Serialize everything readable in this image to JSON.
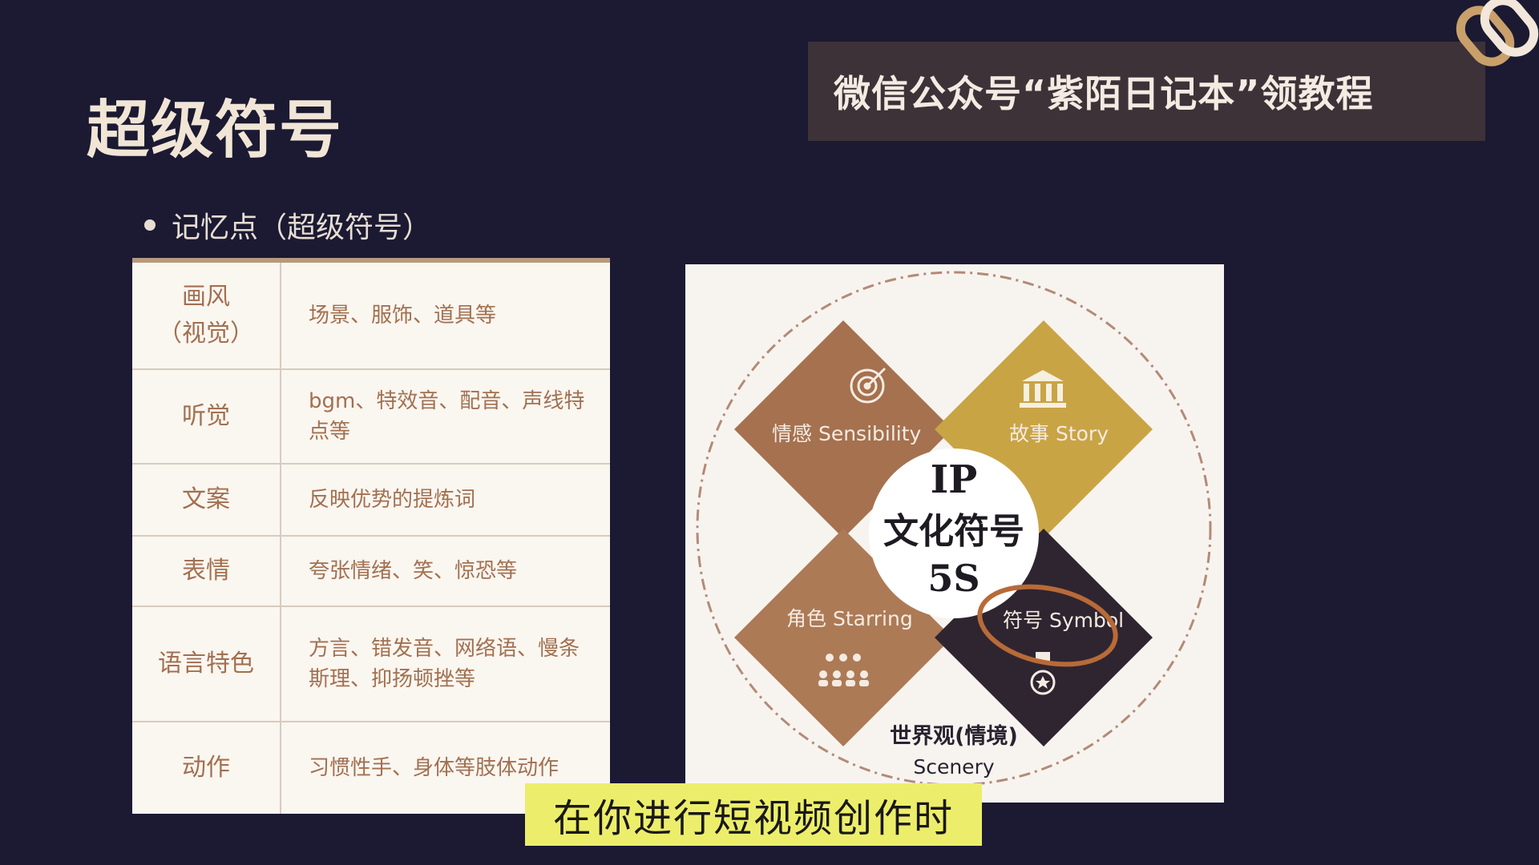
{
  "title": "超级符号",
  "banner": {
    "text": "微信公众号“紫陌日记本”领教程"
  },
  "subtitle": "记忆点（超级符号）",
  "table": {
    "rows": [
      {
        "key": "画风\n（视觉）",
        "value": "场景、服饰、道具等"
      },
      {
        "key": "听觉",
        "value": "bgm、特效音、配音、声线特点等"
      },
      {
        "key": "文案",
        "value": "反映优势的提炼词"
      },
      {
        "key": "表情",
        "value": "夸张情绪、笑、惊恐等"
      },
      {
        "key": "语言特色",
        "value": "方言、错发音、网络语、慢条斯理、抑扬顿挫等"
      },
      {
        "key": "动作",
        "value": "习惯性手、身体等肢体动作"
      }
    ]
  },
  "diagram": {
    "center": {
      "line1": "IP",
      "line2": "文化符号",
      "line3": "5S"
    },
    "quadrants": {
      "sensibility": {
        "label": "情感 Sensibility",
        "color": "#a5714f",
        "icon": "target-icon"
      },
      "story": {
        "label": "故事 Story",
        "color": "#c9a445",
        "icon": "bank-icon"
      },
      "starring": {
        "label": "角色 Starring",
        "color": "#ad7a56",
        "icon": "people-icon"
      },
      "symbol": {
        "label": "符号 Symbol",
        "color": "#2f2530",
        "icon": "medal-icon"
      }
    },
    "scenery": {
      "line1": "世界观(情境)",
      "line2": "Scenery"
    }
  },
  "caption": "在你进行短视频创作时",
  "colors": {
    "background": "#1b1a32",
    "banner": "#3d3238",
    "table_text": "#a27050",
    "highlight_ring": "#b86a38",
    "caption_bg": "#ecee6b"
  }
}
